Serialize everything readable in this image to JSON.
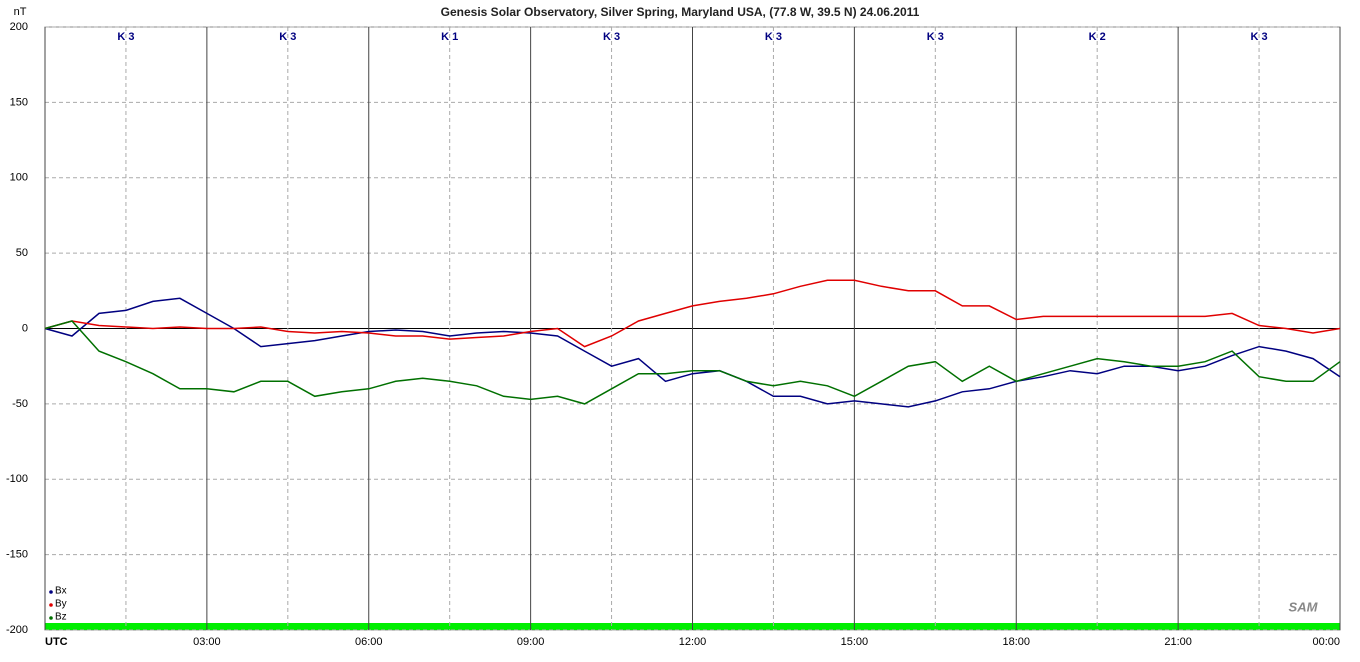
{
  "chart_data": {
    "type": "line",
    "title": "Genesis Solar Observatory, Silver Spring, Maryland USA, (77.8 W, 39.5 N)  24.06.2011",
    "y_label": "nT",
    "logo": "SAM",
    "xlim": [
      0,
      24
    ],
    "ylim": [
      -200,
      200
    ],
    "yticks": [
      -200,
      -150,
      -100,
      -50,
      0,
      50,
      100,
      150,
      200
    ],
    "xticks": [
      {
        "value": 0,
        "label": "UTC"
      },
      {
        "value": 3,
        "label": "03:00"
      },
      {
        "value": 6,
        "label": "06:00"
      },
      {
        "value": 9,
        "label": "09:00"
      },
      {
        "value": 12,
        "label": "12:00"
      },
      {
        "value": 15,
        "label": "15:00"
      },
      {
        "value": 18,
        "label": "18:00"
      },
      {
        "value": 21,
        "label": "21:00"
      },
      {
        "value": 24,
        "label": "00:00"
      }
    ],
    "grid": true,
    "legend": "lower left",
    "annotations": [
      {
        "x": 1.5,
        "label": "K 3"
      },
      {
        "x": 4.5,
        "label": "K 3"
      },
      {
        "x": 7.5,
        "label": "K 1"
      },
      {
        "x": 10.5,
        "label": "K 3"
      },
      {
        "x": 13.5,
        "label": "K 3"
      },
      {
        "x": 16.5,
        "label": "K 3"
      },
      {
        "x": 19.5,
        "label": "K 2"
      },
      {
        "x": 22.5,
        "label": "K 3"
      }
    ],
    "x": [
      0,
      0.5,
      1,
      1.5,
      2,
      2.5,
      3,
      3.5,
      4,
      4.5,
      5,
      5.5,
      6,
      6.5,
      7,
      7.5,
      8,
      8.5,
      9,
      9.5,
      10,
      10.5,
      11,
      11.5,
      12,
      12.5,
      13,
      13.5,
      14,
      14.5,
      15,
      15.5,
      16,
      16.5,
      17,
      17.5,
      18,
      18.5,
      19,
      19.5,
      20,
      20.5,
      21,
      21.5,
      22,
      22.5,
      23,
      23.5,
      24
    ],
    "series": [
      {
        "name": "Bx",
        "color": "#000080",
        "values": [
          0,
          -5,
          10,
          12,
          18,
          20,
          10,
          0,
          -12,
          -10,
          -8,
          -5,
          -2,
          -1,
          -2,
          -5,
          -3,
          -2,
          -3,
          -5,
          -15,
          -25,
          -20,
          -35,
          -30,
          -28,
          -35,
          -45,
          -45,
          -50,
          -48,
          -50,
          -52,
          -48,
          -42,
          -40,
          -35,
          -32,
          -28,
          -30,
          -25,
          -25,
          -28,
          -25,
          -18,
          -12,
          -15,
          -20,
          -32
        ]
      },
      {
        "name": "By",
        "color": "#e00000",
        "values": [
          0,
          5,
          2,
          1,
          0,
          1,
          0,
          0,
          1,
          -2,
          -3,
          -2,
          -3,
          -5,
          -5,
          -7,
          -6,
          -5,
          -2,
          0,
          -12,
          -5,
          5,
          10,
          15,
          18,
          20,
          23,
          28,
          32,
          32,
          28,
          25,
          25,
          15,
          15,
          6,
          8,
          8,
          8,
          8,
          8,
          8,
          8,
          10,
          2,
          0,
          -3,
          0
        ]
      },
      {
        "name": "Bz",
        "color": "#007000",
        "values": [
          0,
          5,
          -15,
          -22,
          -30,
          -40,
          -40,
          -42,
          -35,
          -35,
          -45,
          -42,
          -40,
          -35,
          -33,
          -35,
          -38,
          -45,
          -47,
          -45,
          -50,
          -40,
          -30,
          -30,
          -28,
          -28,
          -35,
          -38,
          -35,
          -38,
          -45,
          -35,
          -25,
          -22,
          -35,
          -25,
          -35,
          -30,
          -25,
          -20,
          -22,
          -25,
          -25,
          -22,
          -15,
          -32,
          -35,
          -35,
          -22
        ]
      }
    ]
  }
}
